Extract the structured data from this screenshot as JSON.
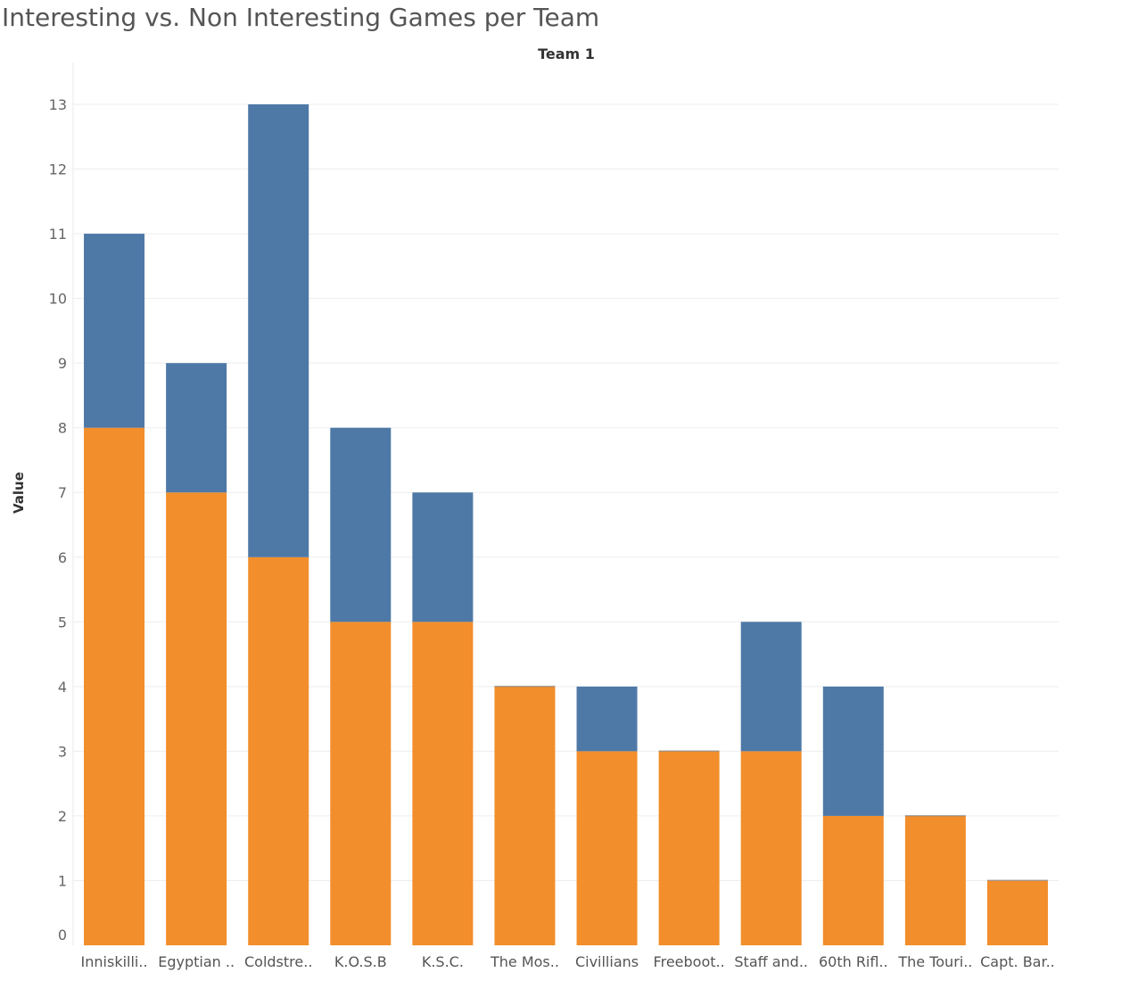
{
  "title": "Interesting vs. Non Interesting Games per Team",
  "chart_data": {
    "type": "bar",
    "stacked": true,
    "header": "Team 1",
    "xlabel": "",
    "ylabel": "Value",
    "ylim": [
      0,
      13
    ],
    "yticks": [
      0,
      1,
      2,
      3,
      4,
      5,
      6,
      7,
      8,
      9,
      10,
      11,
      12,
      13
    ],
    "grid": true,
    "categories": [
      "Inniskilli..",
      "Egyptian ..",
      "Coldstre..",
      "K.O.S.B",
      "K.S.C.",
      "The Mos..",
      "Civillians",
      "Freeboot..",
      "Staff and..",
      "60th Rifl..",
      "The Touri..",
      "Capt. Bar.."
    ],
    "series": [
      {
        "color": "#F28E2B",
        "values": [
          8,
          7,
          6,
          5,
          5,
          4,
          3,
          3,
          3,
          2,
          2,
          1
        ]
      },
      {
        "color": "#4E79A7",
        "values": [
          3,
          2,
          7,
          3,
          2,
          0,
          1,
          0,
          2,
          2,
          0,
          0
        ]
      }
    ]
  }
}
